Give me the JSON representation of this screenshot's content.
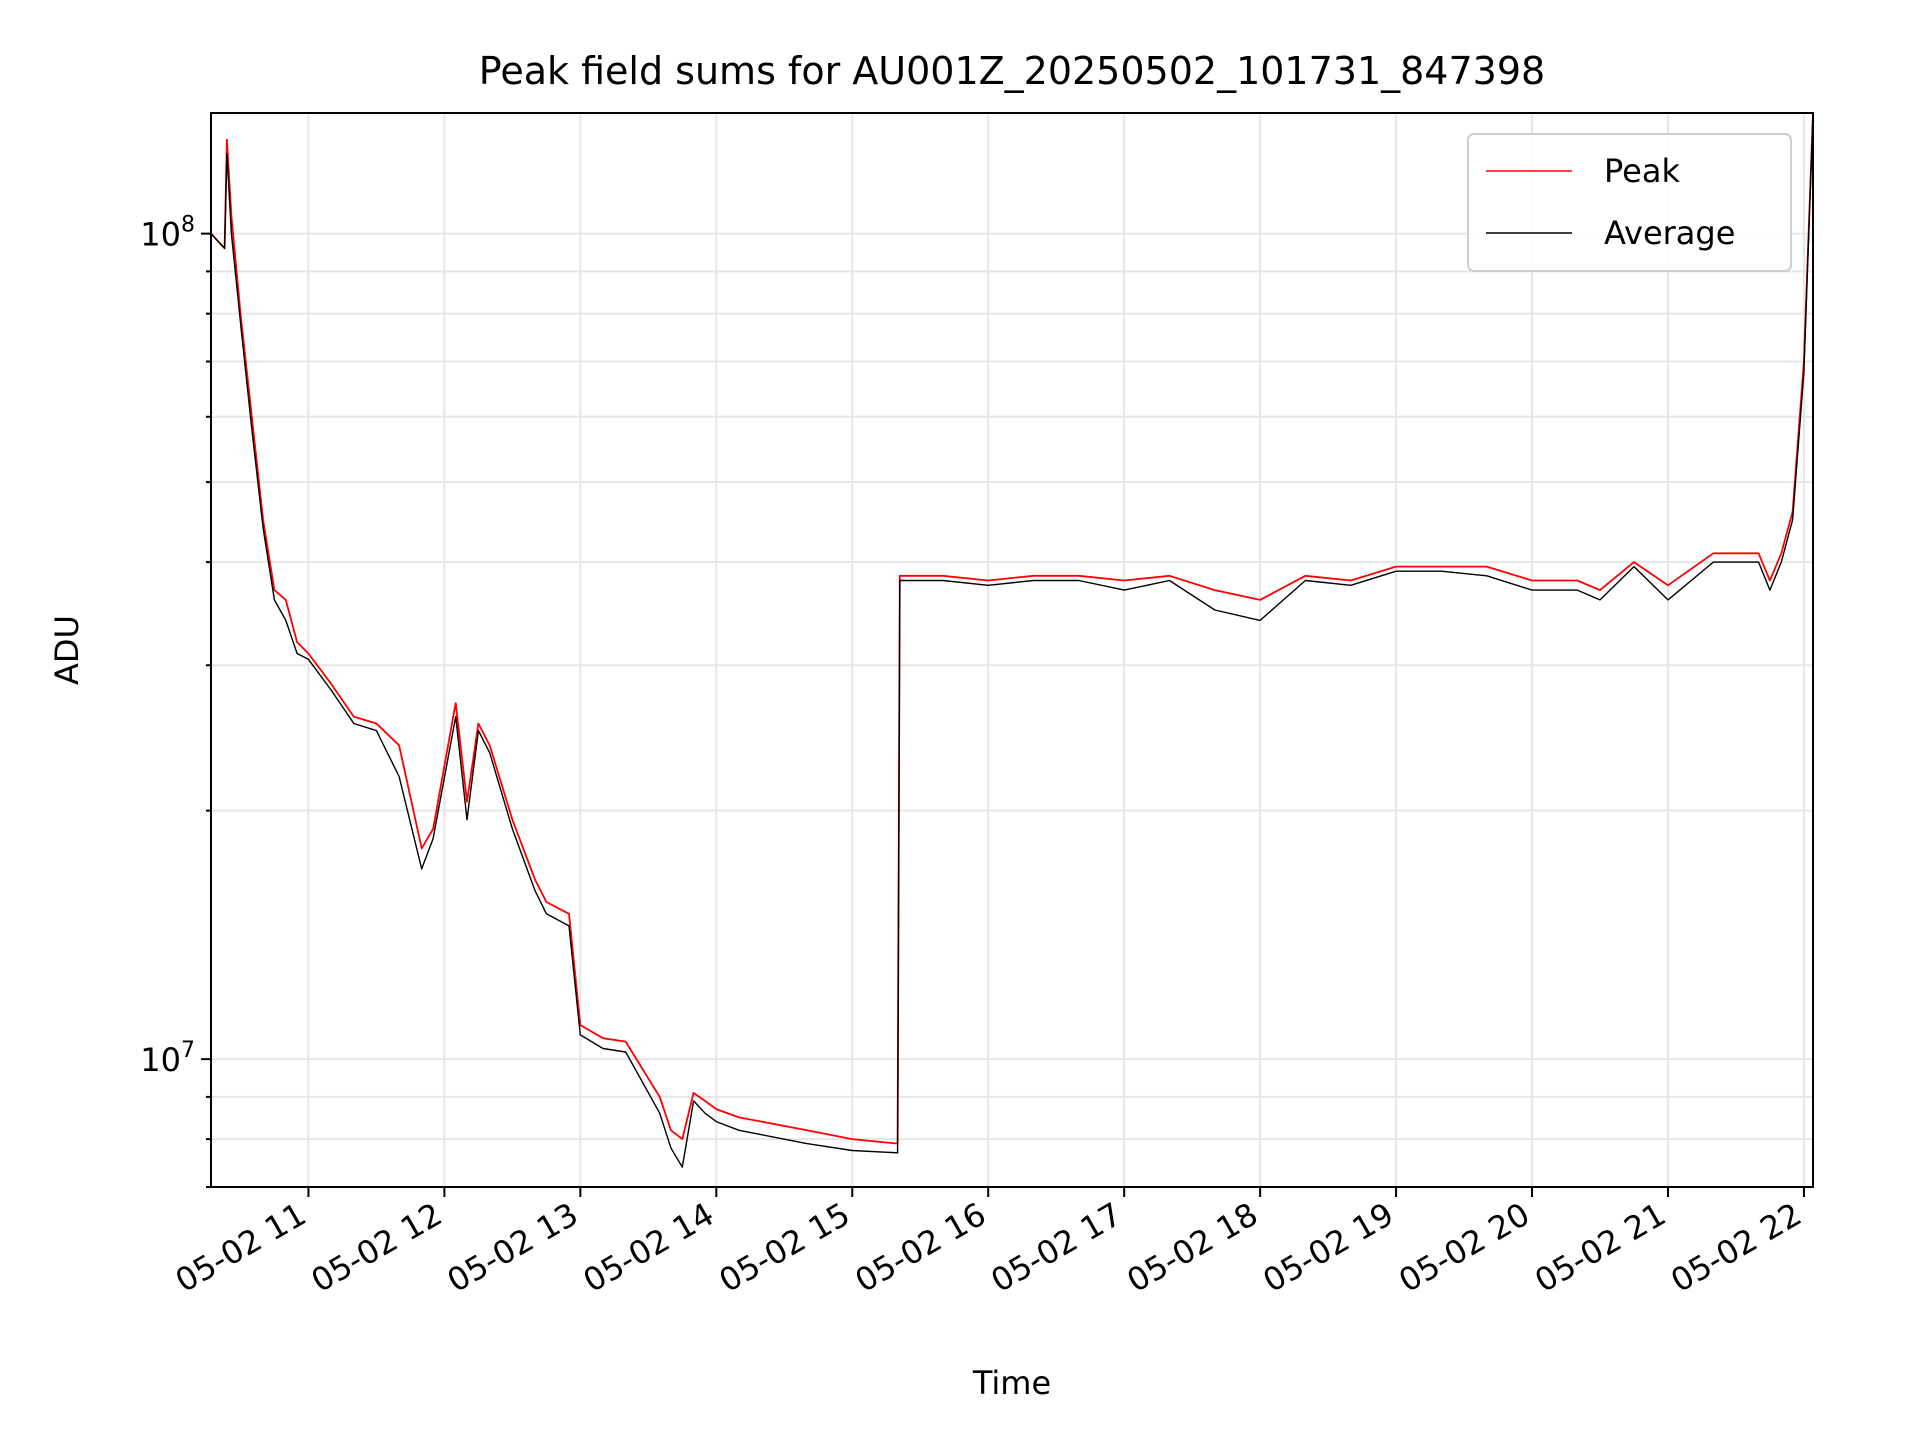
{
  "chart_data": {
    "type": "line",
    "title": "Peak field sums for AU001Z_20250502_101731_847398",
    "xlabel": "Time",
    "ylabel": "ADU",
    "y_scale": "log",
    "xlim": [
      "2025-05-02 10:17",
      "2025-05-02 22:04"
    ],
    "ylim": [
      7000000,
      140000000
    ],
    "x_ticks": [
      "05-02 11",
      "05-02 12",
      "05-02 13",
      "05-02 14",
      "05-02 15",
      "05-02 16",
      "05-02 17",
      "05-02 18",
      "05-02 19",
      "05-02 20",
      "05-02 21",
      "05-02 22"
    ],
    "y_ticks": [
      {
        "value": 10000000,
        "base": "10",
        "exp": "7"
      },
      {
        "value": 100000000,
        "base": "10",
        "exp": "8"
      }
    ],
    "grid": true,
    "legend_position": "upper right",
    "series": [
      {
        "name": "Peak",
        "color": "#ff0000",
        "x": [
          "2025-05-02 10:17",
          "2025-05-02 10:23",
          "2025-05-02 10:24",
          "2025-05-02 10:26",
          "2025-05-02 10:30",
          "2025-05-02 10:35",
          "2025-05-02 10:40",
          "2025-05-02 10:45",
          "2025-05-02 10:50",
          "2025-05-02 10:55",
          "2025-05-02 11:00",
          "2025-05-02 11:10",
          "2025-05-02 11:20",
          "2025-05-02 11:30",
          "2025-05-02 11:40",
          "2025-05-02 11:50",
          "2025-05-02 11:55",
          "2025-05-02 12:05",
          "2025-05-02 12:10",
          "2025-05-02 12:15",
          "2025-05-02 12:20",
          "2025-05-02 12:30",
          "2025-05-02 12:40",
          "2025-05-02 12:45",
          "2025-05-02 12:55",
          "2025-05-02 13:00",
          "2025-05-02 13:10",
          "2025-05-02 13:20",
          "2025-05-02 13:35",
          "2025-05-02 13:40",
          "2025-05-02 13:45",
          "2025-05-02 13:50",
          "2025-05-02 13:55",
          "2025-05-02 14:00",
          "2025-05-02 14:10",
          "2025-05-02 14:20",
          "2025-05-02 14:40",
          "2025-05-02 15:00",
          "2025-05-02 15:20",
          "2025-05-02 15:21",
          "2025-05-02 15:40",
          "2025-05-02 16:00",
          "2025-05-02 16:20",
          "2025-05-02 16:40",
          "2025-05-02 17:00",
          "2025-05-02 17:20",
          "2025-05-02 17:40",
          "2025-05-02 18:00",
          "2025-05-02 18:20",
          "2025-05-02 18:40",
          "2025-05-02 19:00",
          "2025-05-02 19:20",
          "2025-05-02 19:40",
          "2025-05-02 20:00",
          "2025-05-02 20:20",
          "2025-05-02 20:30",
          "2025-05-02 20:45",
          "2025-05-02 21:00",
          "2025-05-02 21:20",
          "2025-05-02 21:40",
          "2025-05-02 21:45",
          "2025-05-02 21:50",
          "2025-05-02 21:55",
          "2025-05-02 22:00",
          "2025-05-02 22:04"
        ],
        "y": [
          100000000,
          96000000,
          130000000,
          105000000,
          80000000,
          60000000,
          45000000,
          37000000,
          36000000,
          32000000,
          31000000,
          28500000,
          26000000,
          25500000,
          24000000,
          18000000,
          19000000,
          27000000,
          20500000,
          25500000,
          24000000,
          19500000,
          16500000,
          15500000,
          15000000,
          11000000,
          10600000,
          10500000,
          9000000,
          8200000,
          8000000,
          9100000,
          8900000,
          8700000,
          8500000,
          8400000,
          8200000,
          8000000,
          7900000,
          38500000,
          38500000,
          38000000,
          38500000,
          38500000,
          38000000,
          38500000,
          37000000,
          36000000,
          38500000,
          38000000,
          39500000,
          39500000,
          39500000,
          38000000,
          38000000,
          37000000,
          40000000,
          37500000,
          41000000,
          41000000,
          38000000,
          41000000,
          46000000,
          70000000,
          140000000
        ]
      },
      {
        "name": "Average",
        "color": "#000000",
        "x": [
          "2025-05-02 10:17",
          "2025-05-02 10:23",
          "2025-05-02 10:24",
          "2025-05-02 10:26",
          "2025-05-02 10:30",
          "2025-05-02 10:35",
          "2025-05-02 10:40",
          "2025-05-02 10:45",
          "2025-05-02 10:50",
          "2025-05-02 10:55",
          "2025-05-02 11:00",
          "2025-05-02 11:10",
          "2025-05-02 11:20",
          "2025-05-02 11:30",
          "2025-05-02 11:40",
          "2025-05-02 11:50",
          "2025-05-02 11:55",
          "2025-05-02 12:05",
          "2025-05-02 12:10",
          "2025-05-02 12:15",
          "2025-05-02 12:20",
          "2025-05-02 12:30",
          "2025-05-02 12:40",
          "2025-05-02 12:45",
          "2025-05-02 12:55",
          "2025-05-02 13:00",
          "2025-05-02 13:10",
          "2025-05-02 13:20",
          "2025-05-02 13:35",
          "2025-05-02 13:40",
          "2025-05-02 13:45",
          "2025-05-02 13:50",
          "2025-05-02 13:55",
          "2025-05-02 14:00",
          "2025-05-02 14:10",
          "2025-05-02 14:20",
          "2025-05-02 14:40",
          "2025-05-02 15:00",
          "2025-05-02 15:20",
          "2025-05-02 15:21",
          "2025-05-02 15:40",
          "2025-05-02 16:00",
          "2025-05-02 16:20",
          "2025-05-02 16:40",
          "2025-05-02 17:00",
          "2025-05-02 17:20",
          "2025-05-02 17:40",
          "2025-05-02 18:00",
          "2025-05-02 18:20",
          "2025-05-02 18:40",
          "2025-05-02 19:00",
          "2025-05-02 19:20",
          "2025-05-02 19:40",
          "2025-05-02 20:00",
          "2025-05-02 20:20",
          "2025-05-02 20:30",
          "2025-05-02 20:45",
          "2025-05-02 21:00",
          "2025-05-02 21:20",
          "2025-05-02 21:40",
          "2025-05-02 21:45",
          "2025-05-02 21:50",
          "2025-05-02 21:55",
          "2025-05-02 22:00",
          "2025-05-02 22:04"
        ],
        "y": [
          100000000,
          96000000,
          125000000,
          100000000,
          78000000,
          58000000,
          44000000,
          36000000,
          34000000,
          31000000,
          30500000,
          28000000,
          25500000,
          25000000,
          22000000,
          17000000,
          18500000,
          26000000,
          19500000,
          25000000,
          23500000,
          19000000,
          16000000,
          15000000,
          14500000,
          10700000,
          10300000,
          10200000,
          8600000,
          7800000,
          7400000,
          8900000,
          8600000,
          8400000,
          8200000,
          8100000,
          7900000,
          7750000,
          7700000,
          38000000,
          38000000,
          37500000,
          38000000,
          38000000,
          37000000,
          38000000,
          35000000,
          34000000,
          38000000,
          37500000,
          39000000,
          39000000,
          38500000,
          37000000,
          37000000,
          36000000,
          39500000,
          36000000,
          40000000,
          40000000,
          37000000,
          40000000,
          45000000,
          68000000,
          140000000
        ]
      }
    ]
  }
}
